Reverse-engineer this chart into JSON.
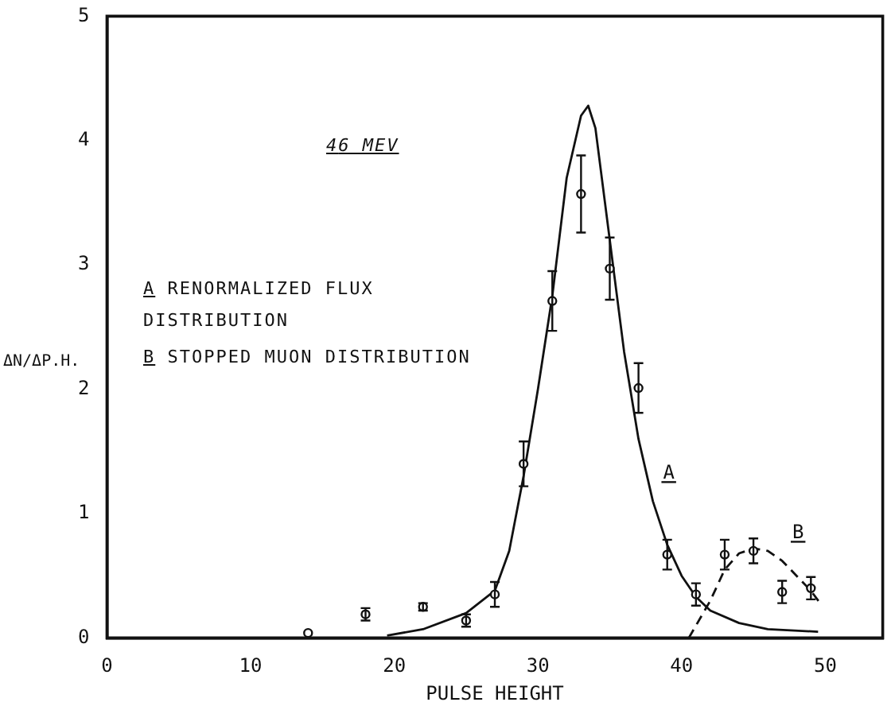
{
  "chart_data": {
    "type": "scatter",
    "xlabel": "PULSE HEIGHT",
    "ylabel": "ΔN/ΔP.H.",
    "xlim": [
      0,
      54
    ],
    "xticks": [
      0,
      10,
      20,
      30,
      40,
      50
    ],
    "ylim": [
      0,
      5
    ],
    "yticks": [
      0,
      1,
      2,
      3,
      4,
      5
    ],
    "grid": false,
    "legend": false,
    "marker": "circle",
    "series": [
      {
        "type": "scatter",
        "color": "#111111",
        "x": [
          14,
          18,
          22,
          25,
          27,
          29,
          31,
          33,
          35,
          37,
          39,
          41,
          43,
          45,
          47,
          49
        ],
        "values": [
          0.04,
          0.19,
          0.25,
          0.14,
          0.35,
          1.4,
          2.71,
          3.57,
          2.97,
          2.01,
          0.67,
          0.35,
          0.67,
          0.7,
          0.37,
          0.4
        ],
        "errors": [
          null,
          0.05,
          0.03,
          0.05,
          0.1,
          0.18,
          0.24,
          0.31,
          0.25,
          0.2,
          0.12,
          0.09,
          0.12,
          0.1,
          0.09,
          0.09
        ]
      },
      {
        "type": "line",
        "name": "A",
        "color": "#111111",
        "line_style": "solid",
        "marker": "none",
        "x": [
          19.5,
          22,
          25,
          27,
          28,
          29,
          30,
          31,
          32,
          33,
          33.5,
          34,
          35,
          36,
          37,
          38,
          39,
          40,
          41,
          42,
          44,
          46,
          49.5
        ],
        "values": [
          0.02,
          0.07,
          0.2,
          0.38,
          0.7,
          1.3,
          2.0,
          2.75,
          3.7,
          4.2,
          4.28,
          4.1,
          3.2,
          2.3,
          1.6,
          1.1,
          0.75,
          0.5,
          0.33,
          0.22,
          0.12,
          0.07,
          0.05
        ]
      },
      {
        "type": "line",
        "name": "B",
        "color": "#111111",
        "line_style": "dashed",
        "marker": "none",
        "x": [
          40.5,
          42,
          43,
          44,
          45,
          46,
          47,
          48,
          49,
          49.7
        ],
        "values": [
          0,
          0.3,
          0.55,
          0.68,
          0.72,
          0.7,
          0.62,
          0.5,
          0.38,
          0.27
        ]
      }
    ],
    "annotations": [
      "46 MEV",
      "A  RENORMALIZED FLUX DISTRIBUTION",
      "B  STOPPED MUON DISTRIBUTION"
    ]
  }
}
